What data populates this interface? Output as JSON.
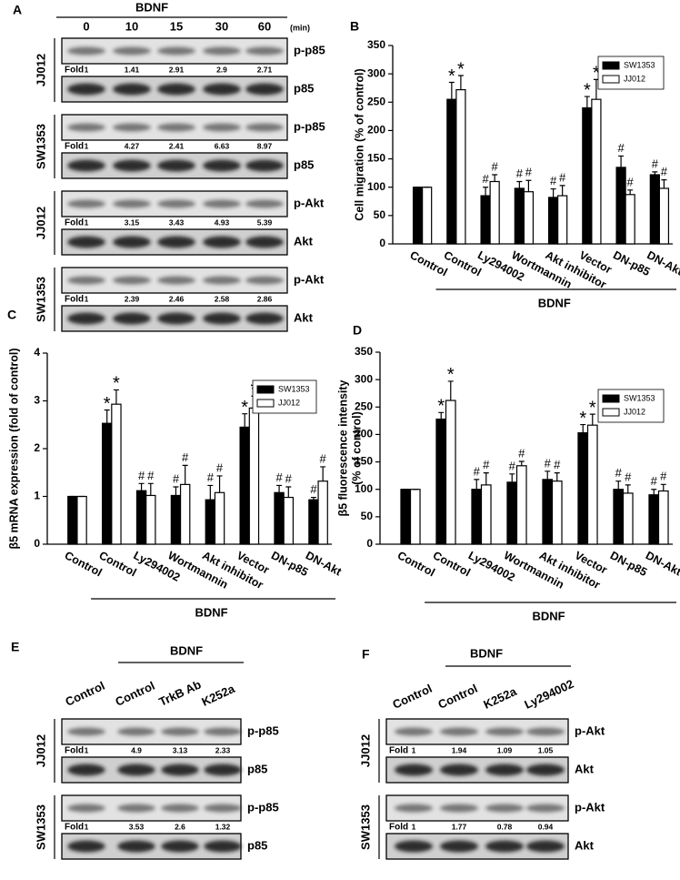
{
  "chart_data": [
    {
      "type": "bar",
      "letter": "B",
      "ylabel": "Cell migration (% of control)",
      "categories": [
        "Control",
        "Control",
        "Ly294002",
        "Wortmannin",
        "Akt inhibitor",
        "Vector",
        "DN-p85",
        "DN-Akt"
      ],
      "group_label": "BDNF",
      "ylim": [
        0,
        350
      ],
      "yticks": [
        0,
        50,
        100,
        150,
        200,
        250,
        300,
        350
      ],
      "legend": "upper right",
      "series": [
        {
          "name": "SW1353",
          "color": "#000000",
          "values": [
            100,
            255,
            85,
            98,
            82,
            240,
            135,
            122
          ],
          "errors": [
            0,
            30,
            15,
            12,
            15,
            20,
            20,
            5
          ],
          "markers": [
            null,
            "*",
            "#",
            "#",
            "#",
            "*",
            "#",
            "#"
          ]
        },
        {
          "name": "JJ012",
          "color": "#ffffff",
          "values": [
            100,
            272,
            110,
            92,
            85,
            255,
            87,
            98
          ],
          "errors": [
            0,
            25,
            12,
            20,
            18,
            35,
            8,
            15
          ],
          "markers": [
            null,
            "*",
            "#",
            "#",
            "#",
            "*",
            "#",
            "#"
          ]
        }
      ]
    },
    {
      "type": "bar",
      "letter": "C",
      "ylabel": "β5 mRNA expression (fold of control)",
      "categories": [
        "Control",
        "Control",
        "Ly294002",
        "Wortmannin",
        "Akt inhibitor",
        "Vector",
        "DN-p85",
        "DN-Akt"
      ],
      "group_label": "BDNF",
      "ylim": [
        0,
        4
      ],
      "yticks": [
        0,
        1,
        2,
        3,
        4
      ],
      "legend": "upper right",
      "series": [
        {
          "name": "SW1353",
          "color": "#000000",
          "values": [
            1,
            2.53,
            1.12,
            1.02,
            0.93,
            2.45,
            1.08,
            0.93
          ],
          "errors": [
            0,
            0.28,
            0.15,
            0.18,
            0.3,
            0.28,
            0.15,
            0.05
          ],
          "markers": [
            null,
            "*",
            "#",
            "#",
            "#",
            "*",
            "#",
            "#"
          ]
        },
        {
          "name": "JJ012",
          "color": "#ffffff",
          "values": [
            1,
            2.93,
            1.02,
            1.25,
            1.08,
            2.85,
            0.98,
            1.32
          ],
          "errors": [
            0,
            0.3,
            0.25,
            0.4,
            0.35,
            0.25,
            0.22,
            0.3
          ],
          "markers": [
            null,
            "*",
            "#",
            "#",
            "#",
            "*",
            "#",
            "#"
          ]
        }
      ]
    },
    {
      "type": "bar",
      "letter": "D",
      "ylabel": [
        "β5 fluorescence intensity",
        "(% of control)"
      ],
      "categories": [
        "Control",
        "Control",
        "Ly294002",
        "Wortmannin",
        "Akt inhibitor",
        "Vector",
        "DN-p85",
        "DN-Akt"
      ],
      "group_label": "BDNF",
      "ylim": [
        0,
        350
      ],
      "yticks": [
        0,
        50,
        100,
        150,
        200,
        250,
        300,
        350
      ],
      "legend": "upper right",
      "series": [
        {
          "name": "SW1353",
          "color": "#000000",
          "values": [
            100,
            228,
            100,
            113,
            118,
            203,
            100,
            90
          ],
          "errors": [
            0,
            12,
            18,
            15,
            15,
            15,
            15,
            10
          ],
          "markers": [
            null,
            "*",
            "#",
            "#",
            "#",
            "*",
            "#",
            "#"
          ]
        },
        {
          "name": "JJ012",
          "color": "#ffffff",
          "values": [
            100,
            262,
            108,
            143,
            115,
            217,
            93,
            97
          ],
          "errors": [
            0,
            35,
            22,
            8,
            15,
            20,
            15,
            12
          ],
          "markers": [
            null,
            "*",
            "#",
            "#",
            "#",
            "*",
            "#",
            "#"
          ]
        }
      ]
    }
  ],
  "blots": [
    {
      "letter": "A",
      "treatment": "BDNF",
      "lanes": [
        "0",
        "10",
        "15",
        "30",
        "60"
      ],
      "unit": "(min)",
      "groups": [
        {
          "cell": "JJ012",
          "rows": [
            {
              "label": "p-p85",
              "fold_label": "Fold",
              "folds": [
                1,
                1.41,
                2.91,
                2.9,
                2.71
              ]
            },
            {
              "label": "p85"
            }
          ]
        },
        {
          "cell": "SW1353",
          "rows": [
            {
              "label": "p-p85",
              "fold_label": "Fold",
              "folds": [
                1,
                4.27,
                2.41,
                6.63,
                8.97
              ]
            },
            {
              "label": "p85"
            }
          ]
        },
        {
          "cell": "JJ012",
          "rows": [
            {
              "label": "p-Akt",
              "fold_label": "Fold",
              "folds": [
                1,
                3.15,
                3.43,
                4.93,
                5.39
              ]
            },
            {
              "label": "Akt"
            }
          ]
        },
        {
          "cell": "SW1353",
          "rows": [
            {
              "label": "p-Akt",
              "fold_label": "Fold",
              "folds": [
                1,
                2.39,
                2.46,
                2.58,
                2.86
              ]
            },
            {
              "label": "Akt"
            }
          ]
        }
      ]
    },
    {
      "letter": "E",
      "treatment": "BDNF",
      "lanes": [
        "Control",
        "Control",
        "TrkB Ab",
        "K252a"
      ],
      "groups": [
        {
          "cell": "JJ012",
          "rows": [
            {
              "label": "p-p85",
              "fold_label": "Fold",
              "folds": [
                1,
                4.9,
                3.13,
                2.33
              ]
            },
            {
              "label": "p85"
            }
          ]
        },
        {
          "cell": "SW1353",
          "rows": [
            {
              "label": "p-p85",
              "fold_label": "Fold",
              "folds": [
                1,
                3.53,
                2.6,
                1.32
              ]
            },
            {
              "label": "p85"
            }
          ]
        }
      ]
    },
    {
      "letter": "F",
      "treatment": "BDNF",
      "lanes": [
        "Control",
        "Control",
        "K252a",
        "Ly294002"
      ],
      "groups": [
        {
          "cell": "JJ012",
          "rows": [
            {
              "label": "p-Akt",
              "fold_label": "Fold",
              "folds": [
                1,
                1.94,
                1.09,
                1.05
              ]
            },
            {
              "label": "Akt"
            }
          ]
        },
        {
          "cell": "SW1353",
          "rows": [
            {
              "label": "p-Akt",
              "fold_label": "Fold",
              "folds": [
                1,
                1.77,
                0.78,
                0.94
              ]
            },
            {
              "label": "Akt"
            }
          ]
        }
      ]
    }
  ]
}
